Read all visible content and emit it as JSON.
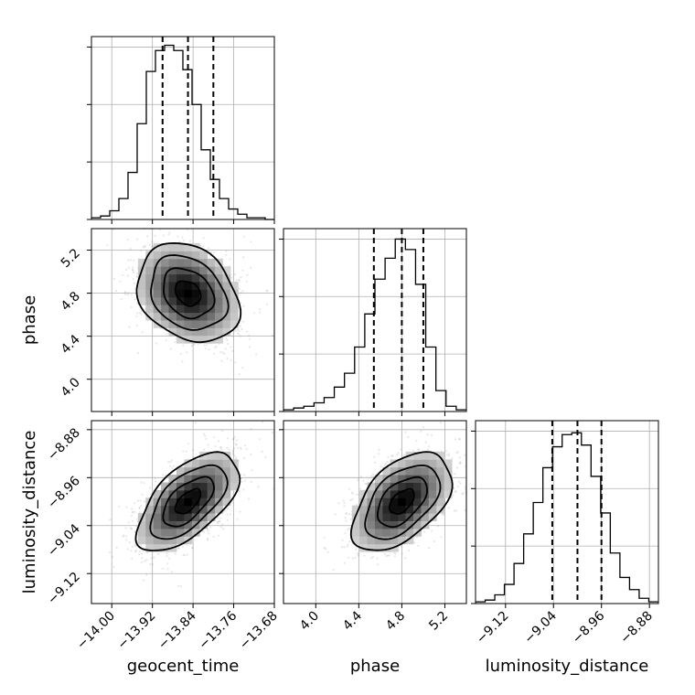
{
  "chart_data": {
    "type": "corner",
    "parameters": [
      {
        "name": "geocent_time",
        "range": [
          -14.04,
          -13.68
        ],
        "ticks": [
          -14.0,
          -13.92,
          -13.84,
          -13.76,
          -13.68
        ],
        "tick_labels": [
          "−14.00",
          "−13.92",
          "−13.84",
          "−13.76",
          "−13.68"
        ],
        "quantiles": [
          -13.9,
          -13.85,
          -13.8
        ],
        "hist_counts": [
          1,
          2,
          5,
          12,
          27,
          55,
          85,
          97,
          100,
          97,
          86,
          66,
          40,
          23,
          12,
          6,
          3,
          1,
          1,
          0
        ]
      },
      {
        "name": "phase",
        "range": [
          3.7,
          5.4
        ],
        "ticks": [
          4.0,
          4.4,
          4.8,
          5.2
        ],
        "tick_labels": [
          "4.0",
          "4.4",
          "4.8",
          "5.2"
        ],
        "quantiles": [
          4.54,
          4.8,
          5.0
        ],
        "hist_counts": [
          1,
          2,
          3,
          5,
          8,
          14,
          22,
          37,
          56,
          76,
          88,
          99,
          93,
          73,
          37,
          12,
          3,
          1
        ]
      },
      {
        "name": "luminosity_distance",
        "range": [
          -9.17,
          -8.865
        ],
        "ticks": [
          -9.12,
          -9.04,
          -8.96,
          -8.88
        ],
        "tick_labels": [
          "−9.12",
          "−9.04",
          "−8.96",
          "−8.88"
        ],
        "quantiles": [
          -9.042,
          -9.0,
          -8.96
        ],
        "hist_counts": [
          1,
          2,
          5,
          11,
          23,
          40,
          58,
          78,
          90,
          97,
          98,
          91,
          73,
          52,
          29,
          15,
          8,
          3,
          1
        ]
      }
    ],
    "correlations": {
      "geocent_time__phase": -0.25,
      "geocent_time__luminosity_distance": 0.6,
      "phase__luminosity_distance": 0.5
    },
    "contour_levels": [
      0.5,
      1.0,
      1.5,
      2.0
    ],
    "grid": true
  }
}
